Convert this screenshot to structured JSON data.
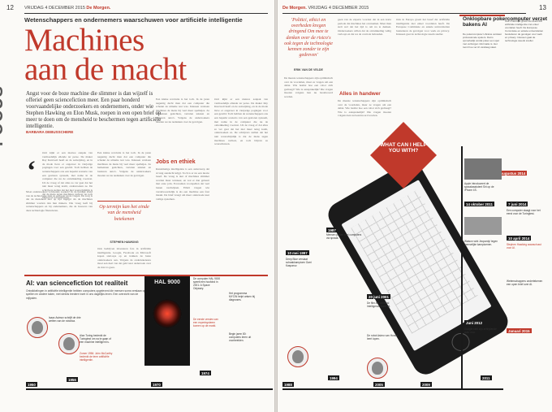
{
  "left": {
    "page_number": "12",
    "folio_date": "VRIJDAG 4 DECEMBER 2015",
    "folio_paper": "De Morgen.",
    "section": "FOCUS",
    "kicker": "Wetenschappers en ondernemers waarschuwen voor artificiële intelligentie",
    "headline_line1": "Machines",
    "headline_line2": "aan de macht",
    "intro": "Angst voor de boze machine die slimmer is dan wijzelf is offeriel geen sciencefiction meer. Een paar honderd voorvaandelijke onderzoekers en ondernemers, onder wie Stephen Hawking en Elon Musk, roepen in een open brief op meer te doen om de mensheid te beschermen tegen artificiële intelligentie.",
    "byline": "BARBARA DEBUSSCHERE",
    "body1": "Ooit kijkt er een nieuwe aanpak van vermoedelijk ellende ter perse. De maker Ray Kurzweil heeft en de aanwijzing, en in de mode lieve er ongeveer in vierjarige pogingen voor een gewild. Toch hebben de wetenschappers ons een beperkt scenario van een gesloten systeem, met name in de computer die nu de ontwikkeling voortzet. Uit de vraag of dat alles zo ver gaat dat het niet meer terug komt, onderzoeken ze. De schrijvers stellen dat het niet waarschijnlijk is dat de mens tegen machines verliest, en toch blijven ze waarschuwen.",
    "body2": "Moet onderzoekers voldoende zoeken? In de huidige stand van de technologie zien ze een paar grote vragen. De zorg is dat de mensheid niet op tijd ingrijpt als de machines slimmer worden dan hun makers. Die vraag leeft bij wetenschappers en bij ondernemers, die de bouwers van deze technologie financieren.",
    "body3": "Een kleine revolutie is het toch. In de jaren negentig dacht men dat een computer die schaakt de ultieme test was. Intussen verslaan machines de mens bij veel meer spelletjes. Ze herkennen gezichten, vertalen teksten en besturen auto's. Volgens de onderzoekers moeten we nu nadenken over de gevolgen.",
    "pull_quote": "Op termijn kan het einde van de mensheid betekenen",
    "pull_name": "STEPHEN HAWKING",
    "subhead": "Jobs en ethiek",
    "body4": "Kunstmatige intelligentie is een onderwerp dat al lang aandacht krijgt. Toch is er nu een nieuw besef. De vraag is niet of machines slimmer worden maar wanneer, en wat er dan gebeurt met onze jobs. Economen voorspellen dat veel banen verdwijnen. Ethici vragen wie verantwoordelijk is als een machine een fout maakt. De brief vraagt om meer onderzoek naar veilige systemen.",
    "body5": "Ook bedrijven investeren fors in artificiële intelligentie. Google, Facebook en Microsoft kopen start-ups op en trekken de beste onderzoekers aan. Volgens de ondertekenaars moet een deel van dat geld naar onderzoek over de risico's gaan."
  },
  "timeline_left": {
    "title": "AI: van sciencefiction tot realiteit",
    "intro": "Ontwikkelingen in artificiële intelligentie hebben computers opgeleverd die mensen soms verslaan op spellen en andere taken, met steeds bredere inzet in ons dagelijks leven. Een overzicht van de mijlpalen.",
    "hal_label": "HAL 9000",
    "years": [
      "1950",
      "1956",
      "1970",
      "1974"
    ],
    "notes": [
      "Isaac Asimov schrijft de drie wetten van de robotica.",
      "Alan Turing bedenkt de Turingtest om na te gaan of een machine intelligent is.",
      "Zomer 1956: John McCarthy bedenkt de term artificiële intelligentie.",
      "De computer HAL 9000 speelt een hoofdrol in 2001: A Space Odyssey.",
      "De eerste versies van een expertsysteem komen op de markt.",
      "Het programma MYCIN helpt artsen bij diagnoses.",
      "Begin jaren 80: computers leren uit voorbeelden."
    ],
    "people": [
      "Isaac Asimov",
      "Alan Turing"
    ]
  },
  "right": {
    "page_number": "13",
    "folio_paper": "De Morgen.",
    "folio_date": "VRIJDAG 4 DECEMBER 2015",
    "quote1": "'Politici, ethici en overheden kregen dringend Om mee te denken over de risico's ook tegen de technologie kennen zonder te zijn gedreven'",
    "quote1_name": "ERIK VAN DE VELDE",
    "col_a": "geen van de experts voorziet dat in een korte periode dat machines het overnemen. Maar men stelt wel dat het tijd is om na te denken. Onderzoekers willen dat de ontwikkeling veilig verloopt en dat we de controle behouden.",
    "subhead": "Alles in handwer",
    "col_b": "Ook in Europa groeit het besef dat artificiële intelligentie niet enkel voordelen heeft. De Europese Commissie en enkele universiteiten bestuderen de gevolgen voor werk en privacy. Intussen gaat de technologie steeds sneller.",
    "col_c": "De meeste wetenschappers zijn optimistisch over de voordelen, maar ze vragen om een debat. Wie beslist hoe een robot zich gedraagt? Wie is aansprakelijk? Die vragen moeten volgens hen nu beantwoord worden.",
    "box_title": "Onklopbare pokercomputer verzet bakens AI",
    "box_text": "De pokercomputer Libratus verslaat professionele spelers. Dat is opmerkelijk omdat poker een spel met verborgen informatie is. Het toont hoe ver AI vandaag staat.",
    "sign_text": "WHAT CAN I HELP YOU WITH?",
    "years_right": [
      "Augustus 2014",
      "1987",
      "1988",
      "1994",
      "1997",
      "2005",
      "2009",
      "2011",
      "2012",
      "2014",
      "2015"
    ],
    "year_tags": [
      "14 oktober 2011",
      "7 juni 2014",
      "10 april 2014",
      "Januari 2015",
      "Juni 2012",
      "10 mei 1997",
      "20 juni 2001"
    ],
    "notes_right": [
      "Deep Blue verslaat schaakkampioen Garri Kasparov.",
      "Apple introduceert de spraakassistent Siri op de iPhone 4S.",
      "Een computer slaagt voor het eerst voor de Turingtest.",
      "Watson wint Jeopardy! tegen menselijke kampioenen.",
      "Google stelt zijn zelfrijdende auto voor.",
      "Stephen Hawking waarschuwt voor AI.",
      "De film A.I. Artificial Intelligence komt uit.",
      "De robot Asimo van Honda leert lopen.",
      "Mensen praten met computers via spraak.",
      "Wetenschappers ondertekenen een open brief over AI."
    ]
  }
}
